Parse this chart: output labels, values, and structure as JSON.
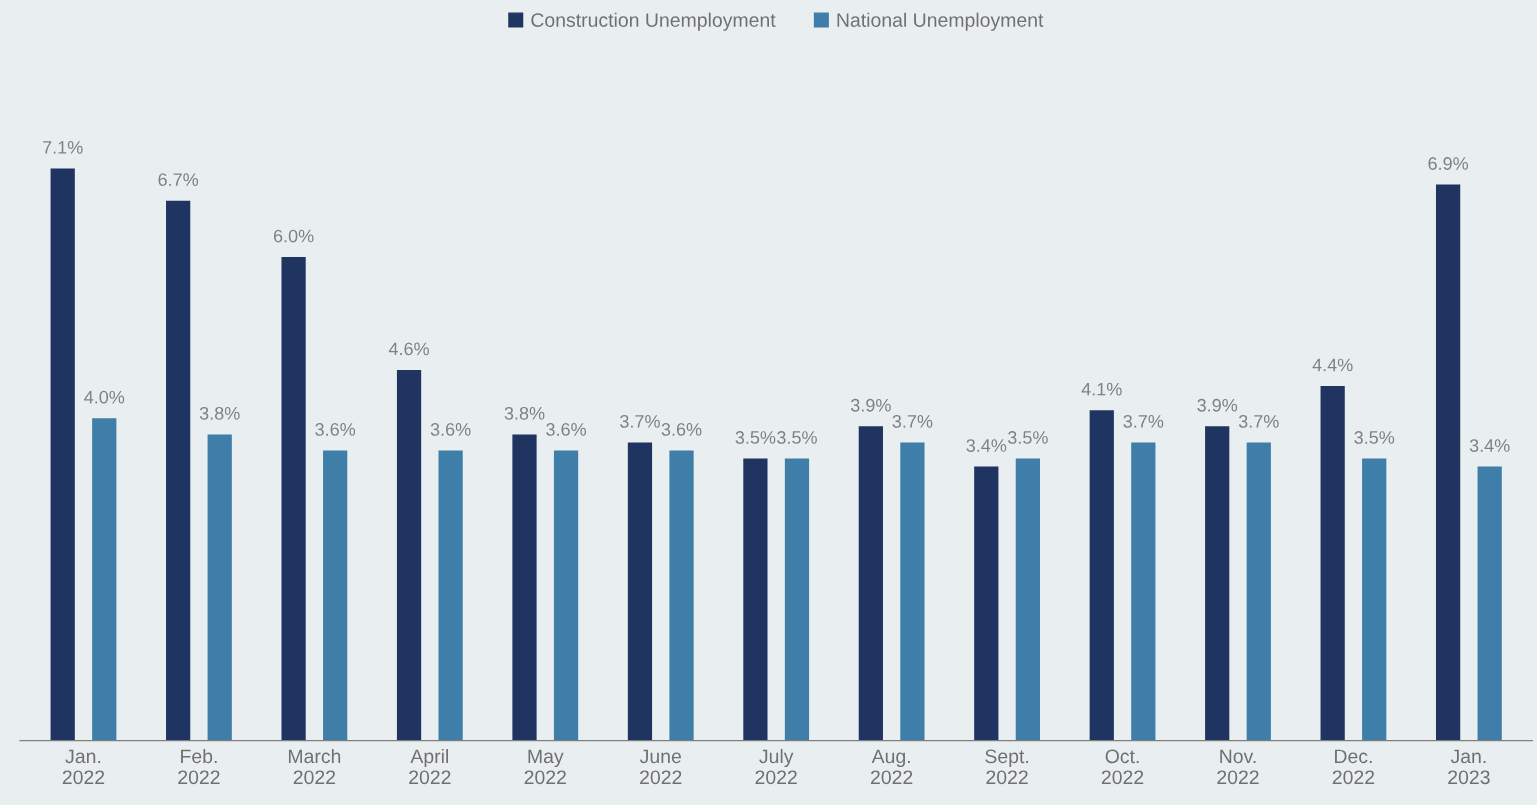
{
  "chart_data": {
    "type": "bar",
    "categories": [
      "Jan.\n2022",
      "Feb.\n2022",
      "March\n2022",
      "April\n2022",
      "May\n2022",
      "June\n2022",
      "July\n2022",
      "Aug.\n2022",
      "Sept.\n2022",
      "Oct.\n2022",
      "Nov.\n2022",
      "Dec.\n2022",
      "Jan.\n2023"
    ],
    "series": [
      {
        "name": "Construction Unemployment",
        "color": "#1f3461",
        "values": [
          7.1,
          6.7,
          6.0,
          4.6,
          3.8,
          3.7,
          3.5,
          3.9,
          3.4,
          4.1,
          3.9,
          4.4,
          6.9
        ],
        "value_labels": [
          "7.1%",
          "6.7%",
          "6.0%",
          "4.6%",
          "3.8%",
          "3.7%",
          "3.5%",
          "3.9%",
          "3.4%",
          "4.1%",
          "3.9%",
          "4.4%",
          "6.9%"
        ]
      },
      {
        "name": "National Unemployment",
        "color": "#3e7ea8",
        "values": [
          4.0,
          3.8,
          3.6,
          3.6,
          3.6,
          3.6,
          3.5,
          3.7,
          3.5,
          3.7,
          3.7,
          3.5,
          3.4
        ],
        "value_labels": [
          "4.0%",
          "3.8%",
          "3.6%",
          "3.6%",
          "3.6%",
          "3.6%",
          "3.5%",
          "3.7%",
          "3.5%",
          "3.7%",
          "3.7%",
          "3.5%",
          "3.4%"
        ]
      }
    ],
    "legend": "top",
    "grid": false
  }
}
